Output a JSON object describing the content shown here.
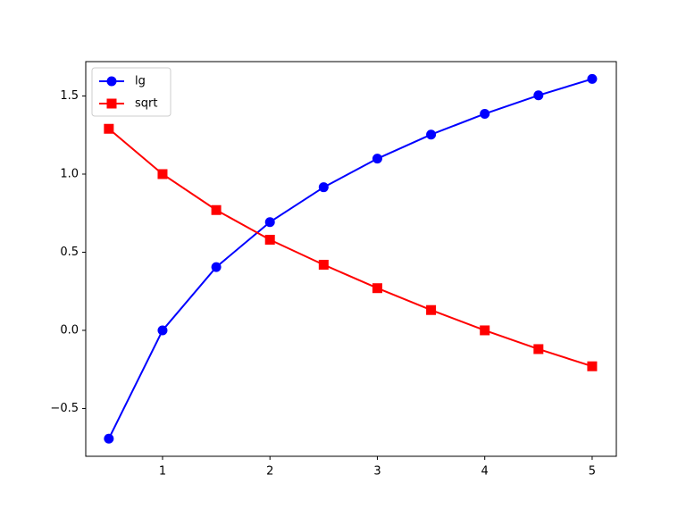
{
  "chart_data": {
    "type": "line",
    "x": [
      0.5,
      1,
      1.5,
      2,
      2.5,
      3,
      3.5,
      4,
      4.5,
      5
    ],
    "series": [
      {
        "name": "lg",
        "color": "#0000ff",
        "marker": "circle",
        "values": [
          -0.693,
          0,
          0.405,
          0.693,
          0.916,
          1.099,
          1.253,
          1.386,
          1.504,
          1.609
        ]
      },
      {
        "name": "sqrt",
        "color": "#ff0000",
        "marker": "square",
        "values": [
          1.29,
          1.0,
          0.77,
          0.58,
          0.42,
          0.27,
          0.13,
          0,
          -0.12,
          -0.23
        ]
      }
    ],
    "xlim": [
      0.285,
      5.225
    ],
    "ylim": [
      -0.806,
      1.72
    ],
    "xticks": [
      1,
      2,
      3,
      4,
      5
    ],
    "yticks": [
      {
        "value": -0.5,
        "label": "−0.5"
      },
      {
        "value": 0,
        "label": "0.0"
      },
      0.5,
      {
        "value": 1,
        "label": "1.0"
      },
      1.5
    ],
    "legend": "upper left",
    "grid": false
  }
}
